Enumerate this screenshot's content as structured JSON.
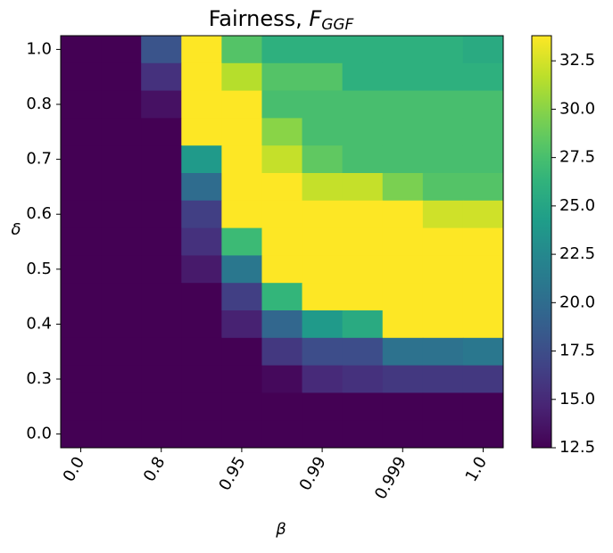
{
  "chart_data": {
    "type": "heatmap",
    "title": "Fairness,",
    "title_symbol": "F",
    "title_subscript": "GGF",
    "x_label": "β",
    "y_label": "δ",
    "x_categories": [
      "0.0",
      null,
      "0.8",
      null,
      "0.95",
      null,
      "0.99",
      null,
      "0.999",
      null,
      "1.0"
    ],
    "y_categories": [
      "1.0",
      null,
      "0.8",
      null,
      "0.7",
      null,
      "0.6",
      null,
      "0.5",
      null,
      "0.4",
      null,
      "0.3",
      null,
      "0.0"
    ],
    "z": [
      [
        12.5,
        12.5,
        18,
        33.8,
        28,
        26,
        26,
        26,
        26,
        26,
        25.5
      ],
      [
        12.5,
        12.5,
        15.5,
        33.8,
        31.5,
        28,
        28,
        26,
        26,
        26,
        26
      ],
      [
        12.5,
        12.5,
        13.5,
        33.8,
        33.8,
        27.5,
        27.5,
        27.5,
        27.5,
        27.5,
        27.5
      ],
      [
        12.5,
        12.5,
        12.5,
        33.8,
        33.8,
        30,
        27.5,
        27.5,
        27.5,
        27.5,
        27.5
      ],
      [
        12.5,
        12.5,
        12.5,
        24,
        33.8,
        32,
        28.5,
        27.5,
        27.5,
        27.5,
        27.5
      ],
      [
        12.5,
        12.5,
        12.5,
        20,
        33.8,
        33.8,
        32,
        32,
        29.5,
        28,
        28
      ],
      [
        12.5,
        12.5,
        12.5,
        16.5,
        33.8,
        33.8,
        33.8,
        33.8,
        33.8,
        32.3,
        32.3
      ],
      [
        12.5,
        12.5,
        12.5,
        15.5,
        27,
        33.8,
        33.8,
        33.8,
        33.8,
        33.8,
        33.8
      ],
      [
        12.5,
        12.5,
        12.5,
        14,
        21,
        33.8,
        33.8,
        33.8,
        33.8,
        33.8,
        33.8
      ],
      [
        12.5,
        12.5,
        12.5,
        12.5,
        16.5,
        26.5,
        33.8,
        33.8,
        33.8,
        33.8,
        33.8
      ],
      [
        12.5,
        12.5,
        12.5,
        12.5,
        14.5,
        19.5,
        24,
        25.5,
        33.8,
        33.8,
        33.8
      ],
      [
        12.5,
        12.5,
        12.5,
        12.5,
        12.5,
        16,
        17.5,
        17.5,
        20.5,
        20.5,
        21
      ],
      [
        12.5,
        12.5,
        12.5,
        12.5,
        12.5,
        13,
        15,
        15.5,
        16,
        16,
        16
      ],
      [
        12.5,
        12.5,
        12.5,
        12.5,
        12.5,
        12.5,
        12.5,
        12.5,
        12.5,
        12.5,
        12.5
      ],
      [
        12.5,
        12.5,
        12.5,
        12.5,
        12.5,
        12.5,
        12.5,
        12.5,
        12.5,
        12.5,
        12.5
      ]
    ],
    "colormap": "viridis",
    "zlim": [
      12.5,
      33.8
    ],
    "zticks": [
      12.5,
      {
        "value": 15,
        "label": "15.0"
      },
      17.5,
      {
        "value": 20,
        "label": "20.0"
      },
      22.5,
      {
        "value": 25,
        "label": "25.0"
      },
      27.5,
      {
        "value": 30,
        "label": "30.0"
      },
      32.5
    ]
  }
}
